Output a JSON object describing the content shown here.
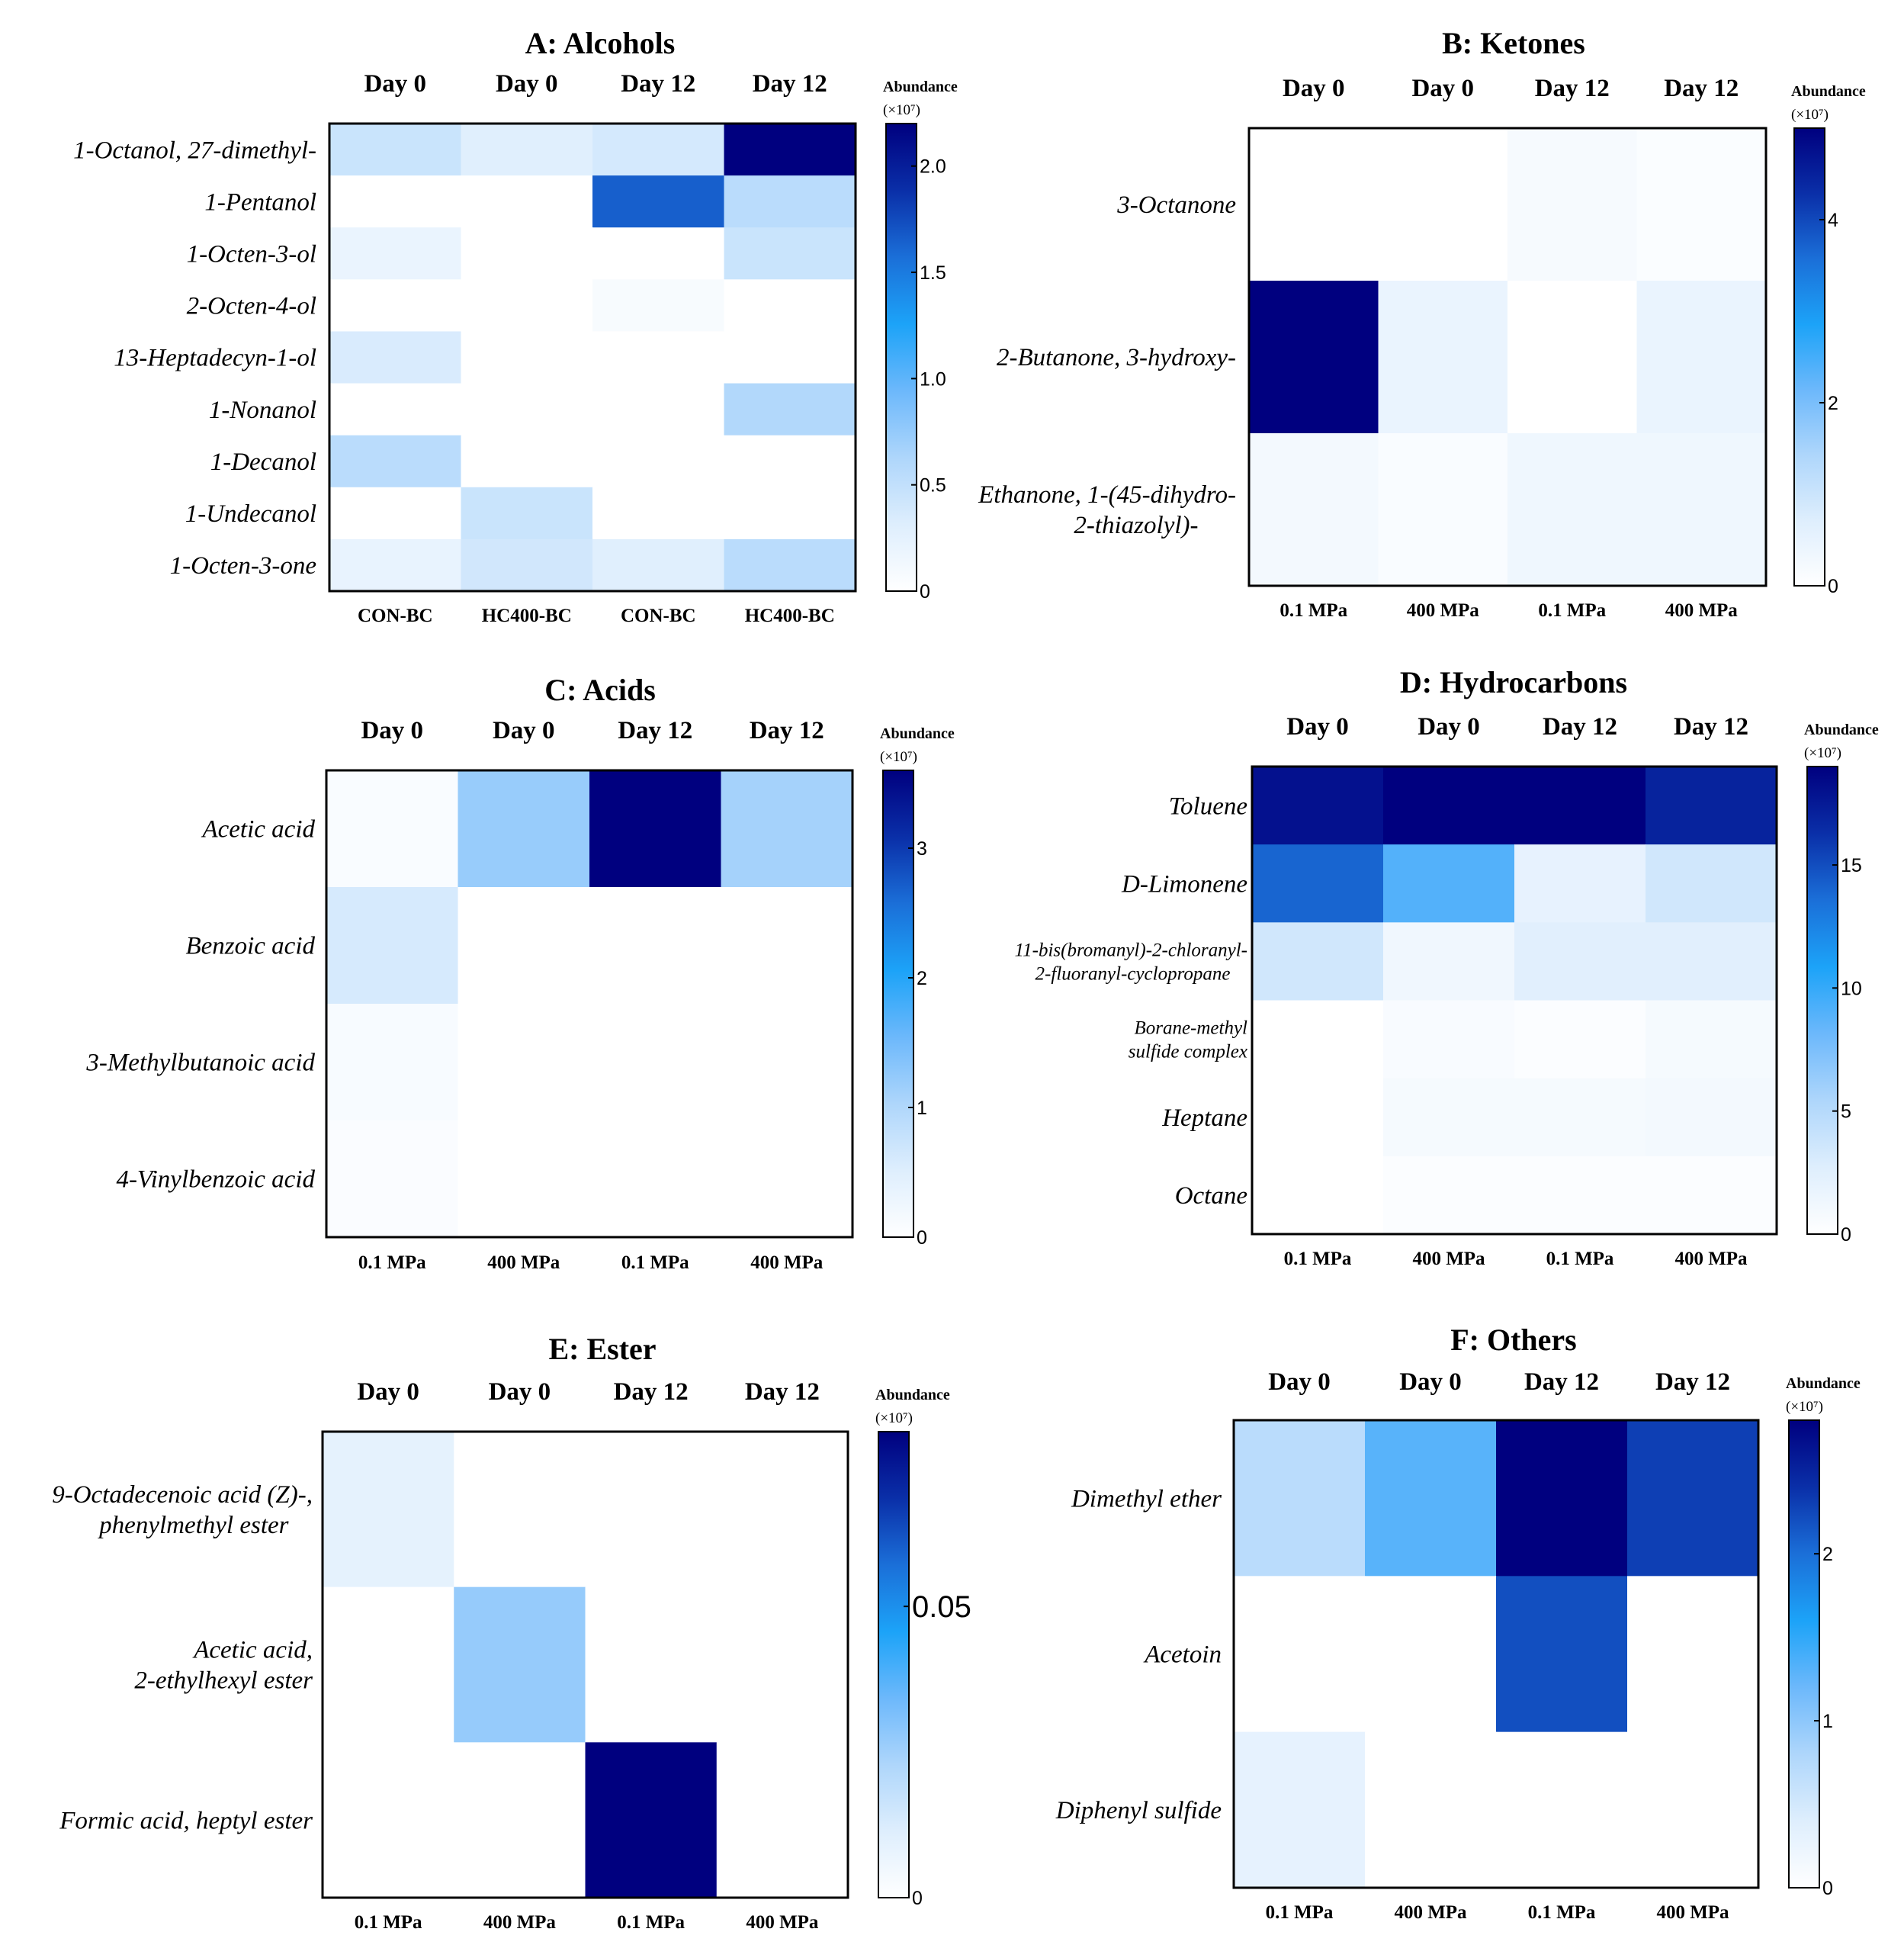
{
  "colors": {
    "scale": [
      "#ffffff",
      "#deeefd",
      "#aed6fb",
      "#6cb8fb",
      "#1ca3f8",
      "#1b6fd8",
      "#0a2fa8",
      "#00007f"
    ],
    "frame": "#000000",
    "text": "#000000"
  },
  "chart_data": [
    {
      "id": "A",
      "type": "heatmap",
      "title": "A: Alcohols",
      "col_labels": [
        "Day 0",
        "Day 0",
        "Day 12",
        "Day 12"
      ],
      "x_labels": [
        "CON-BC",
        "HC400-BC",
        "CON-BC",
        "HC400-BC"
      ],
      "rows": [
        [
          "1-Octanol, 27-dimethyl-"
        ],
        [
          "1-Pentanol"
        ],
        [
          "1-Octen-3-ol"
        ],
        [
          "2-Octen-4-ol"
        ],
        [
          "13-Heptadecyn-1-ol"
        ],
        [
          "1-Nonanol"
        ],
        [
          "1-Decanol"
        ],
        [
          "1-Undecanol"
        ],
        [
          "1-Octen-3-one"
        ]
      ],
      "values": [
        [
          0.45,
          0.3,
          0.38,
          2.2
        ],
        [
          0,
          0,
          1.65,
          0.55
        ],
        [
          0.2,
          0,
          0,
          0.45
        ],
        [
          0,
          0,
          0.08,
          0
        ],
        [
          0.35,
          0,
          0,
          0
        ],
        [
          0,
          0,
          0,
          0.6
        ],
        [
          0.55,
          0,
          0,
          0
        ],
        [
          0,
          0.45,
          0,
          0
        ],
        [
          0.22,
          0.4,
          0.3,
          0.55
        ]
      ],
      "colorbar": {
        "title": "Abundance",
        "unit": "(×10⁷)",
        "range": [
          0,
          2.2
        ],
        "ticks": [
          0,
          0.5,
          1.0,
          1.5,
          2.0
        ],
        "tick_labels": [
          "0",
          "0.5",
          "1.0",
          "1.5",
          "2.0"
        ]
      }
    },
    {
      "id": "B",
      "type": "heatmap",
      "title": "B: Ketones",
      "col_labels": [
        "Day 0",
        "Day 0",
        "Day 12",
        "Day 12"
      ],
      "x_labels": [
        "0.1 MPa",
        "400 MPa",
        "0.1 MPa",
        "400 MPa"
      ],
      "rows": [
        [
          "3-Octanone"
        ],
        [
          "2-Butanone, 3-hydroxy-"
        ],
        [
          "Ethanone, 1-(45-dihydro-",
          "2-thiazolyl)-"
        ]
      ],
      "values": [
        [
          0,
          0,
          0.2,
          0.1
        ],
        [
          5.0,
          0.45,
          0,
          0.45
        ],
        [
          0.25,
          0.12,
          0.35,
          0.35
        ]
      ],
      "colorbar": {
        "title": "Abundance",
        "unit": "(×10⁷)",
        "range": [
          0,
          5.0
        ],
        "ticks": [
          0,
          2,
          4
        ],
        "tick_labels": [
          "0",
          "2",
          "4"
        ]
      }
    },
    {
      "id": "C",
      "type": "heatmap",
      "title": "C: Acids",
      "col_labels": [
        "Day 0",
        "Day 0",
        "Day 12",
        "Day 12"
      ],
      "x_labels": [
        "0.1 MPa",
        "400 MPa",
        "0.1 MPa",
        "400 MPa"
      ],
      "rows": [
        [
          "Acetic acid"
        ],
        [
          "Benzoic acid"
        ],
        [
          "3-Methylbutanoic acid"
        ],
        [
          "4-Vinylbenzoic acid"
        ]
      ],
      "values": [
        [
          0.1,
          1.2,
          3.6,
          1.1
        ],
        [
          0.6,
          0,
          0,
          0
        ],
        [
          0.12,
          0,
          0,
          0
        ],
        [
          0.08,
          0,
          0,
          0
        ]
      ],
      "colorbar": {
        "title": "Abundance",
        "unit": "(×10⁷)",
        "range": [
          0,
          3.6
        ],
        "ticks": [
          0,
          1,
          2,
          3
        ],
        "tick_labels": [
          "0",
          "1",
          "2",
          "3"
        ]
      }
    },
    {
      "id": "D",
      "type": "heatmap",
      "title": "D: Hydrocarbons",
      "col_labels": [
        "Day 0",
        "Day 0",
        "Day 12",
        "Day 12"
      ],
      "x_labels": [
        "0.1 MPa",
        "400 MPa",
        "0.1 MPa",
        "400 MPa"
      ],
      "rows": [
        [
          "Toluene"
        ],
        [
          "D-Limonene"
        ],
        [
          "11-bis(bromanyl)-2-chloranyl-",
          "2-fluoranyl-cyclopropane"
        ],
        [
          "Borane-methyl",
          "sulfide complex"
        ],
        [
          "Heptane"
        ],
        [
          "Octane"
        ]
      ],
      "values": [
        [
          18,
          19,
          19,
          17
        ],
        [
          14,
          9,
          2,
          3.5
        ],
        [
          3.5,
          1.2,
          2.5,
          2.5
        ],
        [
          0,
          0.6,
          0.3,
          0.8
        ],
        [
          0,
          0.8,
          0.8,
          1.0
        ],
        [
          0,
          0.3,
          0.3,
          0.3
        ]
      ],
      "colorbar": {
        "title": "Abundance",
        "unit": "(×10⁷)",
        "range": [
          0,
          19
        ],
        "ticks": [
          0,
          5,
          10,
          15
        ],
        "tick_labels": [
          "0",
          "5",
          "10",
          "15"
        ]
      }
    },
    {
      "id": "E",
      "type": "heatmap",
      "title": "E: Ester",
      "col_labels": [
        "Day 0",
        "Day 0",
        "Day 12",
        "Day 12"
      ],
      "x_labels": [
        "0.1 MPa",
        "400 MPa",
        "0.1 MPa",
        "400 MPa"
      ],
      "rows": [
        [
          "9-Octadecenoic acid (Z)-,",
          "phenylmethyl ester"
        ],
        [
          "Acetic acid,",
          "2-ethylhexyl ester"
        ],
        [
          "Formic acid, heptyl ester"
        ]
      ],
      "values": [
        [
          0.009,
          0,
          0,
          0
        ],
        [
          0,
          0.027,
          0,
          0
        ],
        [
          0,
          0,
          0.08,
          0
        ]
      ],
      "colorbar": {
        "title": "Abundance",
        "unit": "(×10⁷)",
        "range": [
          0,
          0.08
        ],
        "ticks": [
          0,
          0.05
        ],
        "tick_labels": [
          "0",
          "0.05"
        ]
      }
    },
    {
      "id": "F",
      "type": "heatmap",
      "title": "F: Others",
      "col_labels": [
        "Day 0",
        "Day 0",
        "Day 12",
        "Day 12"
      ],
      "x_labels": [
        "0.1 MPa",
        "400 MPa",
        "0.1 MPa",
        "400 MPa"
      ],
      "rows": [
        [
          "Dimethyl ether"
        ],
        [
          "Acetoin"
        ],
        [
          "Diphenyl sulfide"
        ]
      ],
      "values": [
        [
          0.7,
          1.3,
          2.8,
          2.3
        ],
        [
          0,
          0,
          2.2,
          0
        ],
        [
          0.3,
          0,
          0,
          0
        ]
      ],
      "colorbar": {
        "title": "Abundance",
        "unit": "(×10⁷)",
        "range": [
          0,
          2.8
        ],
        "ticks": [
          0,
          1,
          2
        ],
        "tick_labels": [
          "0",
          "1",
          "2"
        ]
      }
    }
  ]
}
